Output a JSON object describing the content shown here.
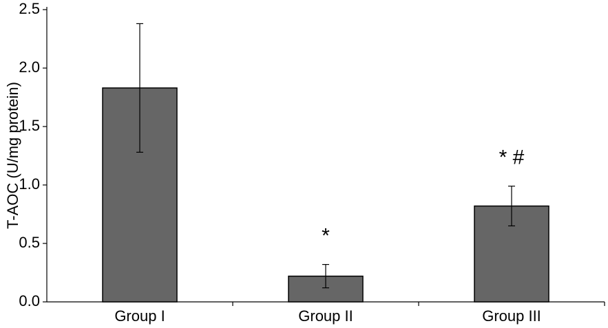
{
  "chart_data": {
    "type": "bar",
    "ylabel": "T-AOC (U/mg protein)",
    "categories": [
      "Group I",
      "Group II",
      "Group III"
    ],
    "values": [
      1.83,
      0.22,
      0.82
    ],
    "errors": [
      0.55,
      0.1,
      0.17
    ],
    "color": "#666666",
    "ylim": [
      0,
      2.5
    ],
    "yticks": [
      {
        "value": 0,
        "label": "0.0"
      },
      {
        "value": 0.5,
        "label": "0.5"
      },
      {
        "value": 1,
        "label": "1.0"
      },
      {
        "value": 1.5,
        "label": "1.5"
      },
      {
        "value": 2,
        "label": "2.0"
      },
      {
        "value": 2.5,
        "label": "2.5"
      }
    ],
    "annotations": [
      {
        "category": "Group II",
        "text": "*"
      },
      {
        "category": "Group III",
        "text": "* #"
      }
    ]
  }
}
